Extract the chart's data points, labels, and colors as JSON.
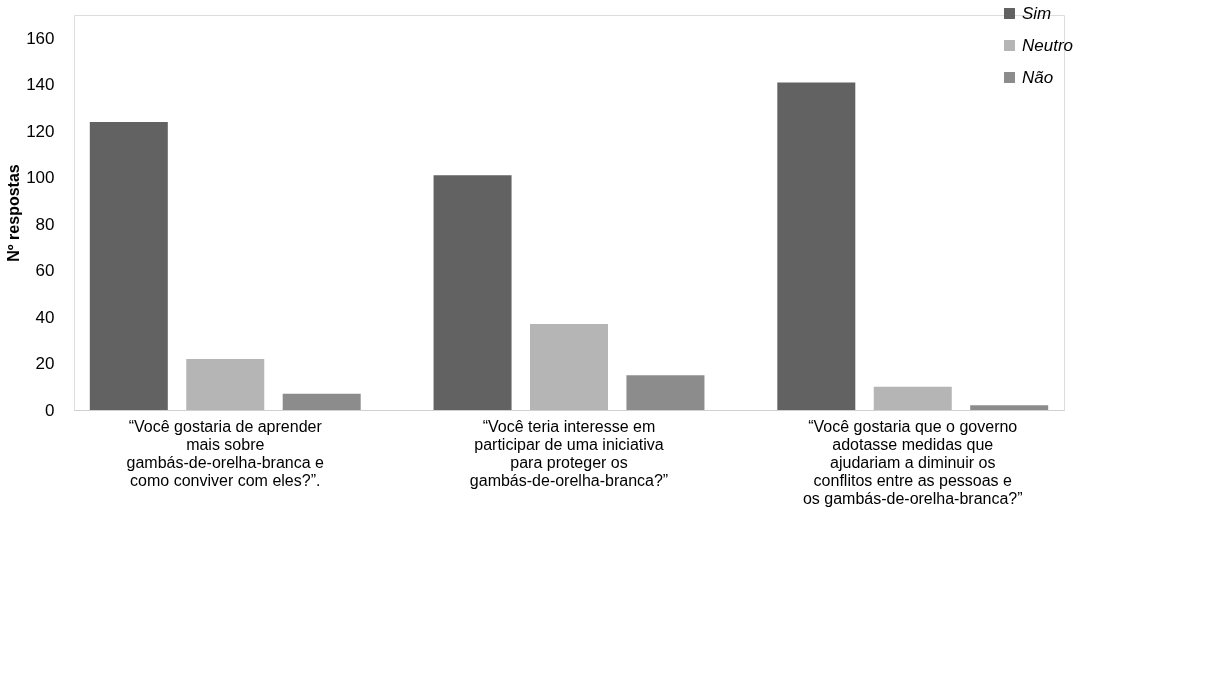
{
  "chart_data": {
    "type": "bar",
    "ylabel": "Nº respostas",
    "categories": [
      "“Você gostaria de aprender mais sobre gambás-de-orelha-branca e como conviver com eles?”.",
      "“Você teria interesse em participar de uma iniciativa para proteger os gambás-de-orelha-branca?”",
      "“Você gostaria que o governo adotasse medidas que ajudariam a diminuir os conflitos entre as pessoas e os gambás-de-orelha-branca?”"
    ],
    "series": [
      {
        "name": "Sim",
        "color": "#626262",
        "values": [
          124,
          101,
          141
        ]
      },
      {
        "name": "Neutro",
        "color": "#b5b5b5",
        "values": [
          22,
          37,
          10
        ]
      },
      {
        "name": "Não",
        "color": "#8c8c8c",
        "values": [
          7,
          15,
          2
        ]
      }
    ],
    "ylim": [
      0,
      170
    ],
    "yticks": [
      0,
      20,
      40,
      60,
      80,
      100,
      120,
      140,
      160
    ],
    "grid": false,
    "legend": "top right"
  }
}
